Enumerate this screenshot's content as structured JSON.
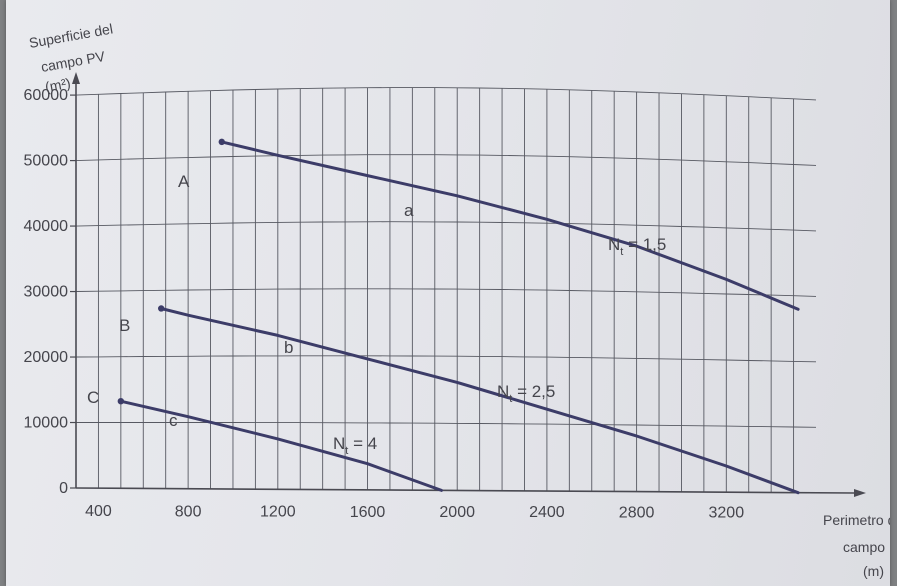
{
  "chart_data": {
    "type": "line",
    "ylabel": [
      "Superficie del",
      "campo PV",
      "(m²)"
    ],
    "xlabel": [
      "Perimetro d",
      "campo PV",
      "(m)"
    ],
    "x_ticks": [
      400,
      800,
      1200,
      1600,
      2000,
      2400,
      2800,
      3200
    ],
    "y_ticks": [
      0,
      10000,
      20000,
      30000,
      40000,
      50000,
      60000
    ],
    "y_tick_labels": [
      "0",
      "10000",
      "20000",
      "30000",
      "40000",
      "50000",
      "60000"
    ],
    "xlim": [
      300,
      3600
    ],
    "ylim": [
      0,
      62000
    ],
    "grid": true,
    "series": [
      {
        "name": "N_t = 1,5",
        "curve_label": "a",
        "start_label": "A",
        "x": [
          950,
          1200,
          1600,
          2000,
          2400,
          2800,
          3200,
          3520
        ],
        "y": [
          53000,
          51000,
          48000,
          45000,
          41500,
          37500,
          32500,
          28000
        ]
      },
      {
        "name": "N_t = 2,5",
        "curve_label": "b",
        "start_label": "B",
        "x": [
          680,
          800,
          1200,
          1600,
          2000,
          2400,
          2800,
          3200,
          3520
        ],
        "y": [
          27500,
          26500,
          23500,
          20000,
          16500,
          12500,
          8500,
          4000,
          0
        ]
      },
      {
        "name": "N_t = 4",
        "curve_label": "c",
        "start_label": "C",
        "x": [
          500,
          800,
          1200,
          1600,
          1930
        ],
        "y": [
          13300,
          11000,
          7700,
          4000,
          0
        ]
      }
    ],
    "series_labels": [
      {
        "main": "N",
        "sub": "t",
        "value": " = 1,5"
      },
      {
        "main": "N",
        "sub": "t",
        "value": " = 2,5"
      },
      {
        "main": "N",
        "sub": "t",
        "value": " = 4"
      }
    ]
  }
}
